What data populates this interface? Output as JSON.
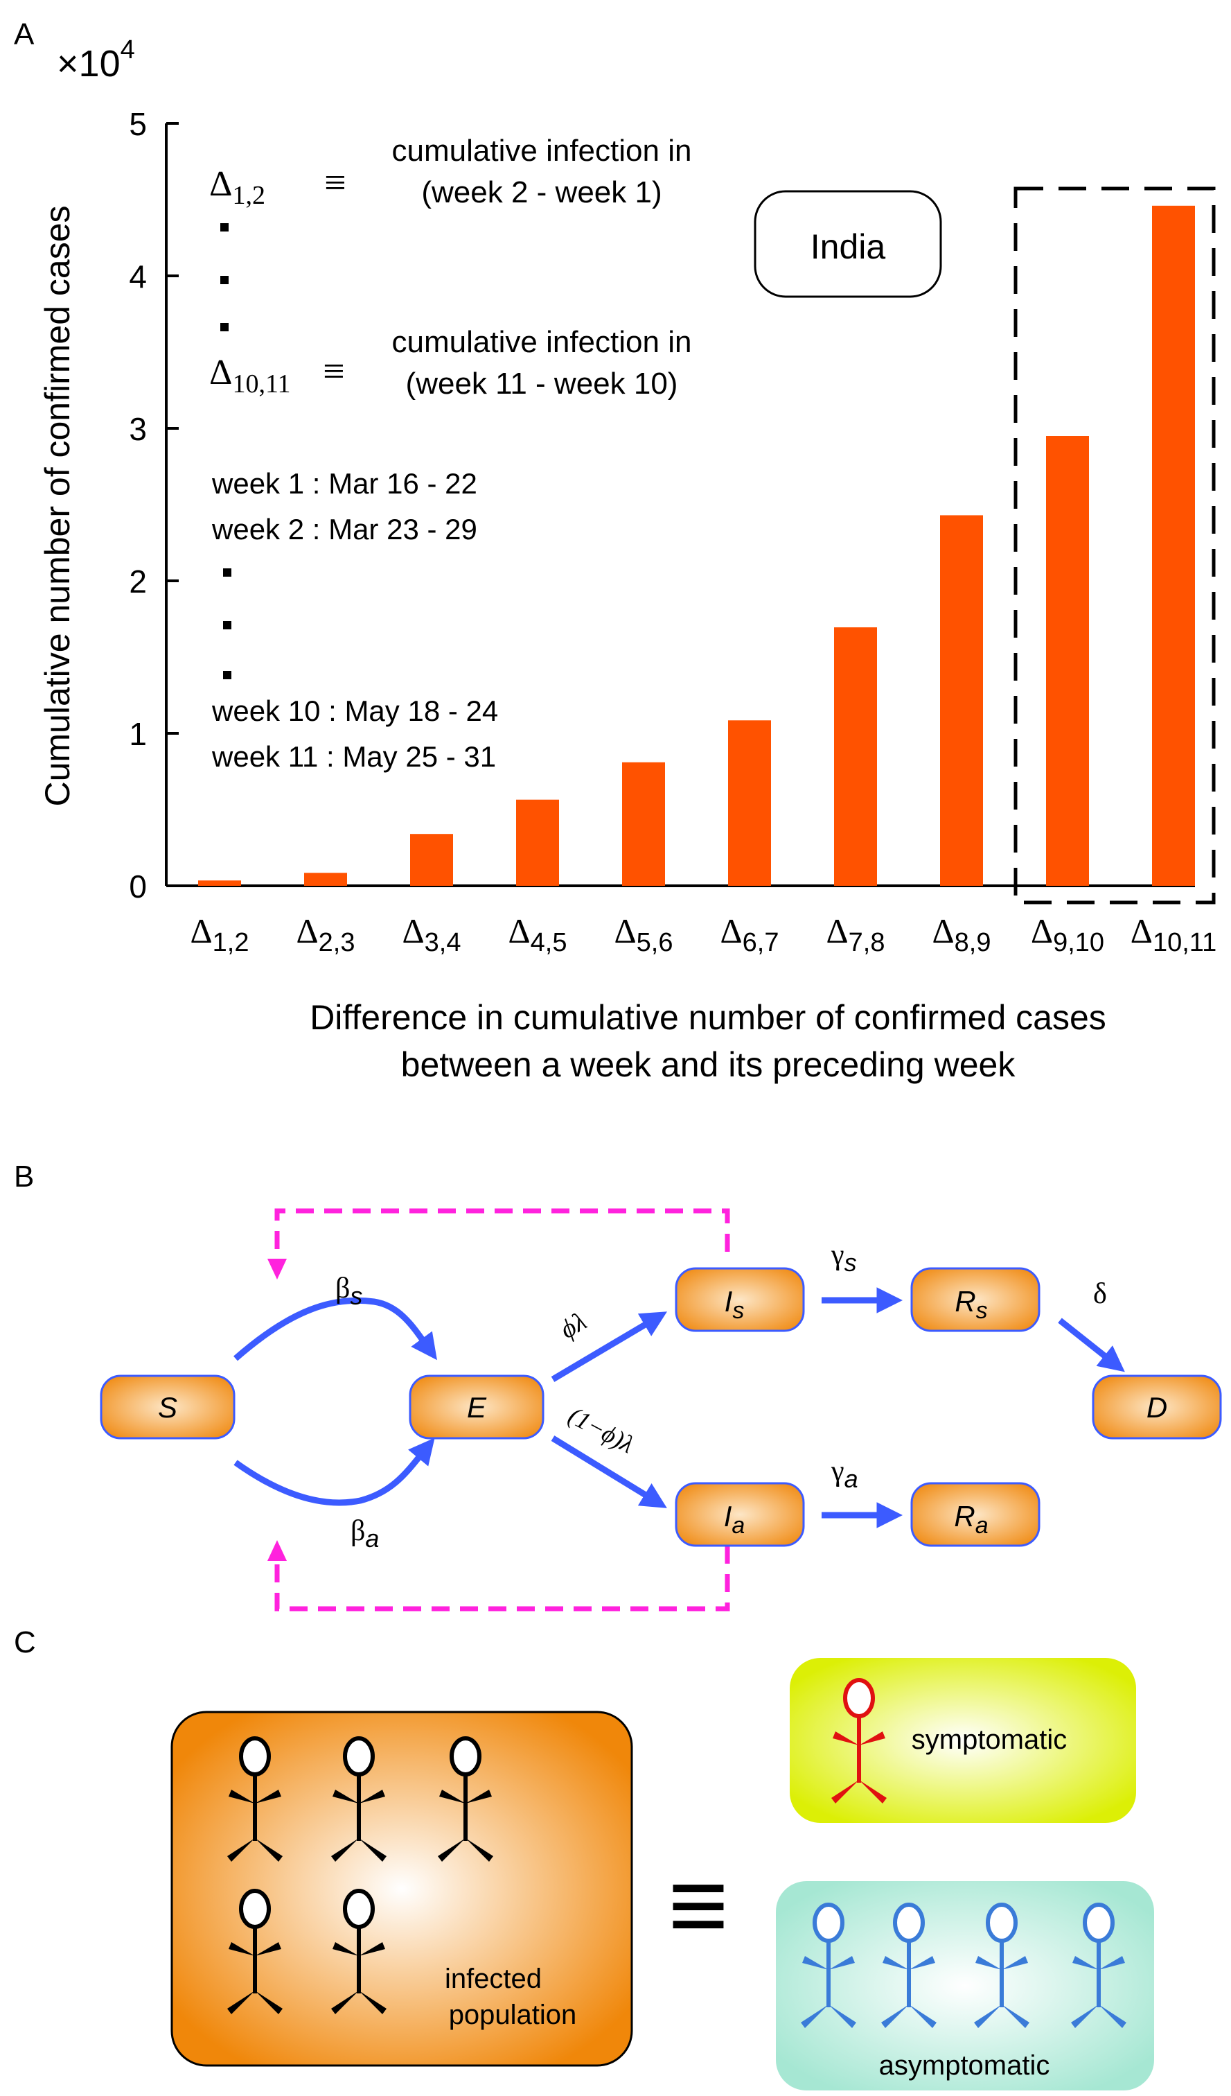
{
  "panels": {
    "a": "A",
    "b": "B",
    "c": "C"
  },
  "chart_data": {
    "type": "bar",
    "categories": [
      "1,2",
      "2,3",
      "3,4",
      "4,5",
      "5,6",
      "6,7",
      "7,8",
      "8,9",
      "9,10",
      "10,11"
    ],
    "category_symbol": "Δ",
    "values": [
      350,
      850,
      3400,
      5650,
      8100,
      10850,
      16950,
      24300,
      29500,
      44600
    ],
    "ylim": [
      0,
      50000
    ],
    "yticks": [
      "0",
      "1",
      "2",
      "3",
      "4",
      "5"
    ],
    "yscale_label": "×10",
    "yscale_exp": "4",
    "ylabel": "Cumulative number of confirmed cases",
    "xlabel_line1": "Difference in cumulative number of confirmed cases",
    "xlabel_line2": "between a week and its preceding week",
    "bar_color": "#ff5200",
    "country_label": "India",
    "highlight": [
      "9,10",
      "10,11"
    ],
    "legend": {
      "first_symbol_sub": "1,2",
      "first_desc1": "cumulative infection in",
      "first_desc2": "(week 2 - week 1)",
      "last_symbol_sub": "10,11",
      "last_desc1": "cumulative infection in",
      "last_desc2": "(week 11 - week 10)",
      "equiv": "≡",
      "weeks": [
        "week 1 : Mar 16 - 22",
        "week 2 : Mar 23 - 29",
        "week 10 : May 18 - 24",
        "week 11 : May 25 - 31"
      ]
    }
  },
  "model": {
    "S": "S",
    "E": "E",
    "Is": "I",
    "Is_sub": "s",
    "Ia": "I",
    "Ia_sub": "a",
    "Rs": "R",
    "Rs_sub": "s",
    "Ra": "R",
    "Ra_sub": "a",
    "D": "D",
    "beta": "β",
    "beta_s_sub": "s",
    "beta_a_sub": "a",
    "gamma": "γ",
    "gamma_s_sub": "s",
    "gamma_a_sub": "a",
    "delta": "δ",
    "phi_lambda": "ϕλ",
    "one_minus_phi_lambda": "(1−ϕ)λ",
    "box_color": "#f39a1e",
    "arrow_color": "#3c5bff",
    "feedback_color": "#ff22dd"
  },
  "population": {
    "infected_line1": "infected",
    "infected_line2": "population",
    "equiv": "≡",
    "symptomatic": "symptomatic",
    "asymptomatic": "asymptomatic"
  }
}
